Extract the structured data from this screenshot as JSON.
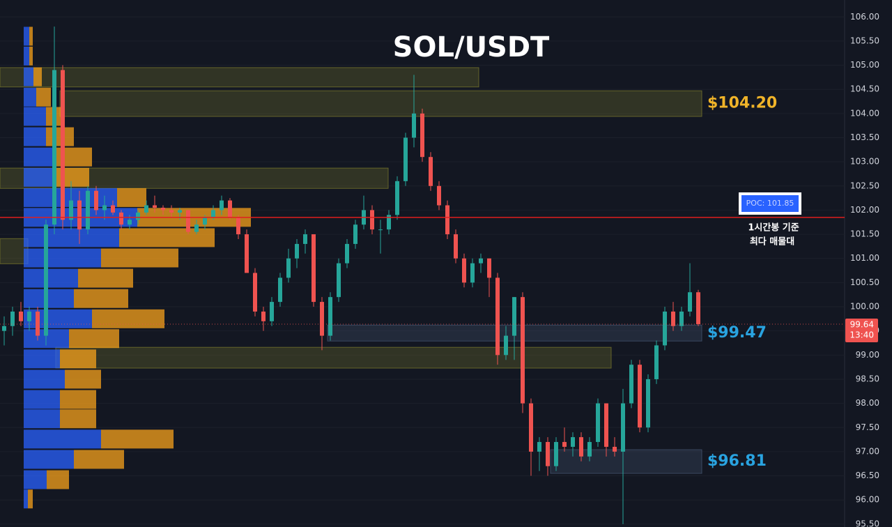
{
  "chart_data": {
    "type": "candlestick",
    "title": "SOL/USDT",
    "ylim": [
      95.44,
      106.35
    ],
    "yticks": [
      {
        "value": 95.5,
        "label": "95.50"
      },
      {
        "value": 96,
        "label": "96.00"
      },
      {
        "value": 96.5,
        "label": "96.50"
      },
      {
        "value": 97,
        "label": "97.00"
      },
      {
        "value": 97.5,
        "label": "97.50"
      },
      {
        "value": 98,
        "label": "98.00"
      },
      {
        "value": 98.5,
        "label": "98.50"
      },
      {
        "value": 99,
        "label": "99.00"
      },
      {
        "value": 99.5,
        "label": "99.50"
      },
      {
        "value": 100,
        "label": "100.00"
      },
      {
        "value": 100.5,
        "label": "100.50"
      },
      {
        "value": 101,
        "label": "101.00"
      },
      {
        "value": 101.5,
        "label": "101.50"
      },
      {
        "value": 102,
        "label": "102.00"
      },
      {
        "value": 102.5,
        "label": "102.50"
      },
      {
        "value": 103,
        "label": "103.00"
      },
      {
        "value": 103.5,
        "label": "103.50"
      },
      {
        "value": 104,
        "label": "104.00"
      },
      {
        "value": 104.5,
        "label": "104.50"
      },
      {
        "value": 105,
        "label": "105.00"
      },
      {
        "value": 105.5,
        "label": "105.50"
      },
      {
        "value": 106,
        "label": "106.00"
      }
    ],
    "grid": true,
    "series": {
      "up_color": "#26a69a",
      "down_color": "#ef5350",
      "open": [
        99.5,
        99.6,
        99.9,
        99.7,
        99.9,
        99.4,
        101.7,
        104.9,
        101.8,
        102.2,
        101.6,
        102.4,
        102.0,
        102.1,
        101.95,
        101.7,
        101.8,
        101.95,
        102.1,
        102.05,
        102.0,
        101.95,
        102.0,
        101.55,
        101.7,
        101.85,
        102.0,
        102.2,
        101.85,
        101.5,
        100.7,
        99.9,
        99.7,
        100.1,
        100.6,
        101.0,
        101.3,
        101.5,
        100.1,
        99.4,
        100.2,
        100.9,
        101.3,
        101.7,
        102.0,
        101.6,
        101.6,
        101.9,
        102.6,
        103.5,
        104.0,
        103.1,
        102.5,
        102.1,
        101.5,
        101.0,
        100.5,
        100.9,
        101.0,
        100.6,
        99.0,
        99.4,
        100.2,
        98.0,
        97.0,
        97.2,
        96.7,
        97.2,
        97.1,
        97.3,
        96.9,
        97.2,
        98.0,
        97.1,
        97.0,
        98.0,
        98.8,
        97.5,
        98.5,
        99.2,
        99.9,
        99.6,
        99.9,
        100.3
      ],
      "high": [
        99.8,
        100.0,
        100.1,
        100.0,
        100.0,
        101.8,
        105.8,
        105.0,
        102.6,
        102.4,
        102.5,
        102.5,
        102.3,
        102.2,
        102.0,
        101.9,
        102.0,
        102.2,
        102.3,
        102.1,
        102.1,
        102.05,
        102.0,
        101.8,
        101.9,
        102.1,
        102.3,
        102.25,
        101.9,
        101.6,
        100.8,
        100.0,
        100.2,
        100.7,
        101.2,
        101.4,
        101.6,
        101.5,
        100.2,
        100.3,
        101.0,
        101.4,
        101.8,
        102.3,
        102.1,
        101.8,
        102.0,
        102.7,
        103.6,
        104.8,
        104.1,
        103.2,
        102.6,
        102.2,
        101.6,
        101.1,
        101.0,
        101.1,
        101.0,
        100.7,
        99.6,
        100.2,
        100.3,
        98.1,
        97.3,
        97.3,
        97.3,
        97.5,
        97.4,
        97.4,
        97.3,
        98.1,
        98.0,
        97.3,
        98.3,
        98.9,
        98.9,
        98.6,
        99.3,
        100.0,
        100.1,
        100.0,
        100.9,
        100.35
      ],
      "low": [
        99.2,
        99.4,
        99.6,
        99.5,
        99.3,
        99.2,
        101.5,
        101.6,
        101.6,
        101.3,
        101.5,
        101.9,
        101.8,
        101.9,
        101.6,
        101.6,
        101.7,
        101.9,
        101.95,
        101.9,
        101.85,
        101.8,
        101.5,
        101.5,
        101.6,
        101.8,
        101.9,
        101.8,
        101.4,
        100.7,
        99.8,
        99.5,
        99.6,
        100.0,
        100.5,
        100.8,
        101.1,
        100.0,
        99.1,
        99.3,
        100.1,
        100.8,
        101.2,
        101.6,
        101.5,
        101.1,
        101.5,
        101.8,
        102.5,
        103.3,
        103.0,
        102.4,
        102.0,
        101.4,
        100.9,
        100.4,
        100.4,
        100.7,
        100.2,
        98.8,
        98.9,
        98.9,
        97.8,
        96.5,
        96.6,
        96.5,
        96.6,
        97.0,
        96.9,
        96.8,
        96.8,
        97.1,
        96.9,
        96.9,
        95.5,
        97.9,
        97.4,
        97.4,
        98.4,
        99.1,
        99.5,
        99.5,
        99.8,
        99.6
      ],
      "close": [
        99.6,
        99.9,
        99.7,
        99.9,
        99.4,
        101.7,
        104.9,
        101.8,
        102.2,
        101.6,
        102.4,
        102.0,
        102.1,
        101.95,
        101.7,
        101.8,
        101.95,
        102.1,
        102.05,
        102.0,
        101.95,
        102.0,
        101.55,
        101.7,
        101.85,
        102.0,
        102.2,
        101.85,
        101.5,
        100.7,
        99.9,
        99.7,
        100.1,
        100.6,
        101.0,
        101.3,
        101.5,
        100.1,
        99.4,
        100.2,
        100.9,
        101.3,
        101.7,
        102.0,
        101.6,
        101.6,
        101.9,
        102.6,
        103.5,
        104.0,
        103.1,
        102.5,
        102.1,
        101.5,
        101.0,
        100.5,
        100.9,
        101.0,
        100.6,
        99.0,
        99.4,
        100.2,
        98.0,
        97.0,
        97.2,
        96.7,
        97.2,
        97.1,
        97.3,
        96.9,
        97.2,
        98.0,
        97.1,
        97.0,
        98.0,
        98.8,
        97.5,
        98.5,
        99.2,
        99.9,
        99.6,
        99.9,
        100.3,
        99.64
      ]
    },
    "volume_profile": {
      "buy_color": "#2962ff",
      "sell_color": "#f7a21b",
      "levels": [
        105.6,
        105.19,
        104.76,
        104.34,
        103.94,
        103.52,
        103.1,
        102.68,
        102.26,
        101.85,
        101.43,
        101.01,
        100.59,
        100.17,
        99.75,
        99.34,
        98.92,
        98.5,
        98.08,
        97.68,
        97.26,
        96.84,
        96.42,
        96.02
      ],
      "buy": [
        8,
        8,
        14,
        18,
        32,
        32,
        44,
        46,
        134,
        163,
        137,
        111,
        78,
        72,
        98,
        65,
        52,
        59,
        52,
        52,
        111,
        72,
        33,
        6
      ],
      "sell": [
        5,
        5,
        12,
        21,
        26,
        40,
        54,
        48,
        42,
        163,
        137,
        111,
        79,
        78,
        104,
        72,
        52,
        52,
        52,
        52,
        104,
        72,
        32,
        7
      ]
    },
    "zones": [
      {
        "low": 104.55,
        "high": 104.95,
        "color": "#6b6a2a"
      },
      {
        "low": 103.94,
        "high": 104.47,
        "color": "#6b6a2a",
        "label": "$104.20",
        "label_color": "#f0b429"
      },
      {
        "low": 102.45,
        "high": 102.87,
        "color": "#6b6a2a"
      },
      {
        "low": 100.89,
        "high": 101.41,
        "color": "#6b6a2a"
      },
      {
        "low": 99.29,
        "high": 99.62,
        "color": "#3e4d66",
        "label": "$99.47",
        "label_color": "#29a3e0"
      },
      {
        "low": 98.73,
        "high": 99.16,
        "color": "#6b6a2a"
      },
      {
        "low": 96.55,
        "high": 97.04,
        "color": "#3e4d66",
        "label": "$96.81",
        "label_color": "#29a3e0"
      }
    ],
    "poc": {
      "value": 101.85,
      "label": "POC: 101.85",
      "color": "#e01e1e"
    },
    "annotation": [
      "1시간봉 기준",
      "최다 매물대"
    ],
    "last_price": 99.64,
    "countdown": "13:40"
  }
}
